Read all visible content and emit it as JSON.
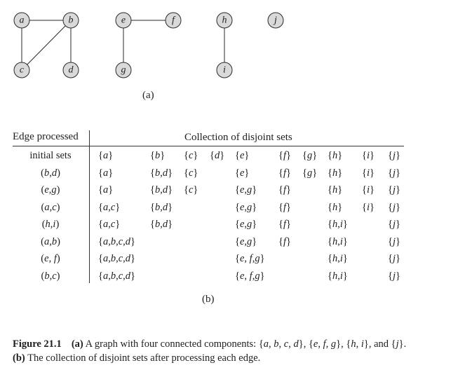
{
  "graph": {
    "nodes": [
      "a",
      "b",
      "c",
      "d",
      "e",
      "f",
      "g",
      "h",
      "i",
      "j"
    ],
    "edges": [
      [
        "a",
        "b"
      ],
      [
        "a",
        "c"
      ],
      [
        "b",
        "c"
      ],
      [
        "b",
        "d"
      ],
      [
        "e",
        "f"
      ],
      [
        "e",
        "g"
      ],
      [
        "h",
        "i"
      ]
    ]
  },
  "part_a_label": "(a)",
  "part_b_label": "(b)",
  "table": {
    "header_edge": "Edge processed",
    "header_collection": "Collection of disjoint sets",
    "rows": [
      {
        "label": "initial sets",
        "cells": [
          "{a}",
          "{b}",
          "{c}",
          "{d}",
          "{e}",
          "{f}",
          "{g}",
          "{h}",
          "{i}",
          "{j}"
        ]
      },
      {
        "label": "(b,d)",
        "cells": [
          "{a}",
          "{b,d}",
          "{c}",
          "",
          "{e}",
          "{f}",
          "{g}",
          "{h}",
          "{i}",
          "{j}"
        ]
      },
      {
        "label": "(e,g)",
        "cells": [
          "{a}",
          "{b,d}",
          "{c}",
          "",
          "{e,g}",
          "{f}",
          "",
          "{h}",
          "{i}",
          "{j}"
        ]
      },
      {
        "label": "(a,c)",
        "cells": [
          "{a,c}",
          "{b,d}",
          "",
          "",
          "{e,g}",
          "{f}",
          "",
          "{h}",
          "{i}",
          "{j}"
        ]
      },
      {
        "label": "(h,i)",
        "cells": [
          "{a,c}",
          "{b,d}",
          "",
          "",
          "{e,g}",
          "{f}",
          "",
          "{h,i}",
          "",
          "{j}"
        ]
      },
      {
        "label": "(a,b)",
        "cells": [
          "{a,b,c,d}",
          "",
          "",
          "",
          "{e,g}",
          "{f}",
          "",
          "{h,i}",
          "",
          "{j}"
        ]
      },
      {
        "label": "(e, f)",
        "cells": [
          "{a,b,c,d}",
          "",
          "",
          "",
          "{e, f,g}",
          "",
          "",
          "{h,i}",
          "",
          "{j}"
        ]
      },
      {
        "label": "(b,c)",
        "cells": [
          "{a,b,c,d}",
          "",
          "",
          "",
          "{e, f,g}",
          "",
          "",
          "{h,i}",
          "",
          "{j}"
        ]
      }
    ]
  },
  "caption": {
    "figure_label": "Figure 21.1",
    "part_a": "(a)",
    "text_a": "A graph with four connected components: {a, b, c, d}, {e, f, g}, {h, i}, and {j}.",
    "part_b": "(b)",
    "text_b": "The collection of disjoint sets after processing each edge."
  }
}
